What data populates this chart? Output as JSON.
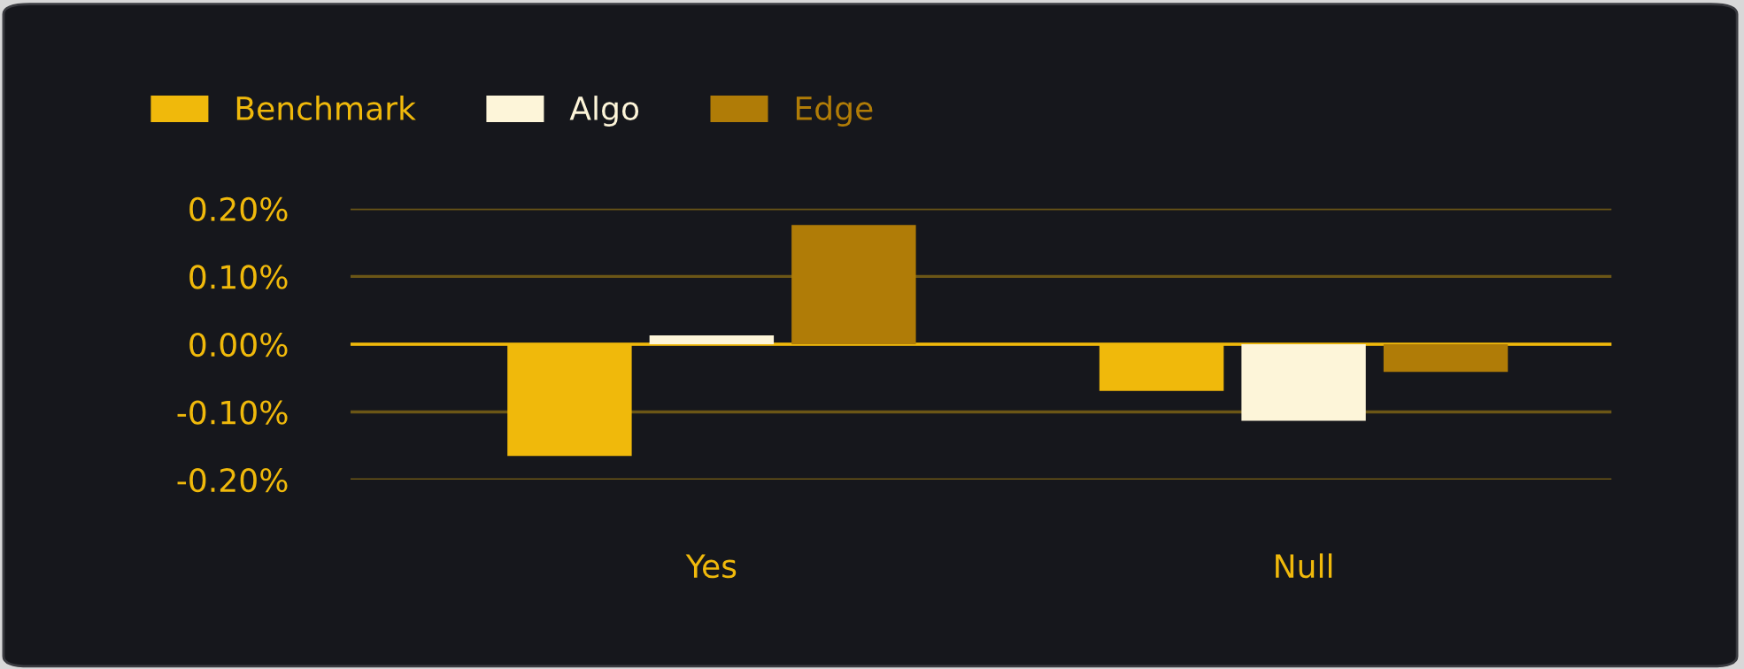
{
  "chart_data": {
    "type": "bar",
    "categories": [
      "Yes",
      "Null"
    ],
    "series": [
      {
        "name": "Benchmark",
        "color": "#f0b90b",
        "values": [
          -0.165,
          -0.069
        ]
      },
      {
        "name": "Algo",
        "color": "#fdf5d9",
        "values": [
          0.013,
          -0.113
        ]
      },
      {
        "name": "Edge",
        "color": "#b07c07",
        "values": [
          0.176,
          -0.041
        ]
      }
    ],
    "ylim": [
      -0.2,
      0.2
    ],
    "yticks": [
      {
        "value": 0.2,
        "label": "0.20%"
      },
      {
        "value": 0.1,
        "label": "0.10%"
      },
      {
        "value": 0,
        "label": "0.00%"
      },
      {
        "value": -0.1,
        "label": "-0.10%"
      },
      {
        "value": -0.2,
        "label": "-0.20%"
      }
    ],
    "ref_lines": [
      {
        "axis": "y",
        "value": 0,
        "color": "#f0b90b"
      }
    ],
    "grid": "y",
    "legend": "top left"
  }
}
